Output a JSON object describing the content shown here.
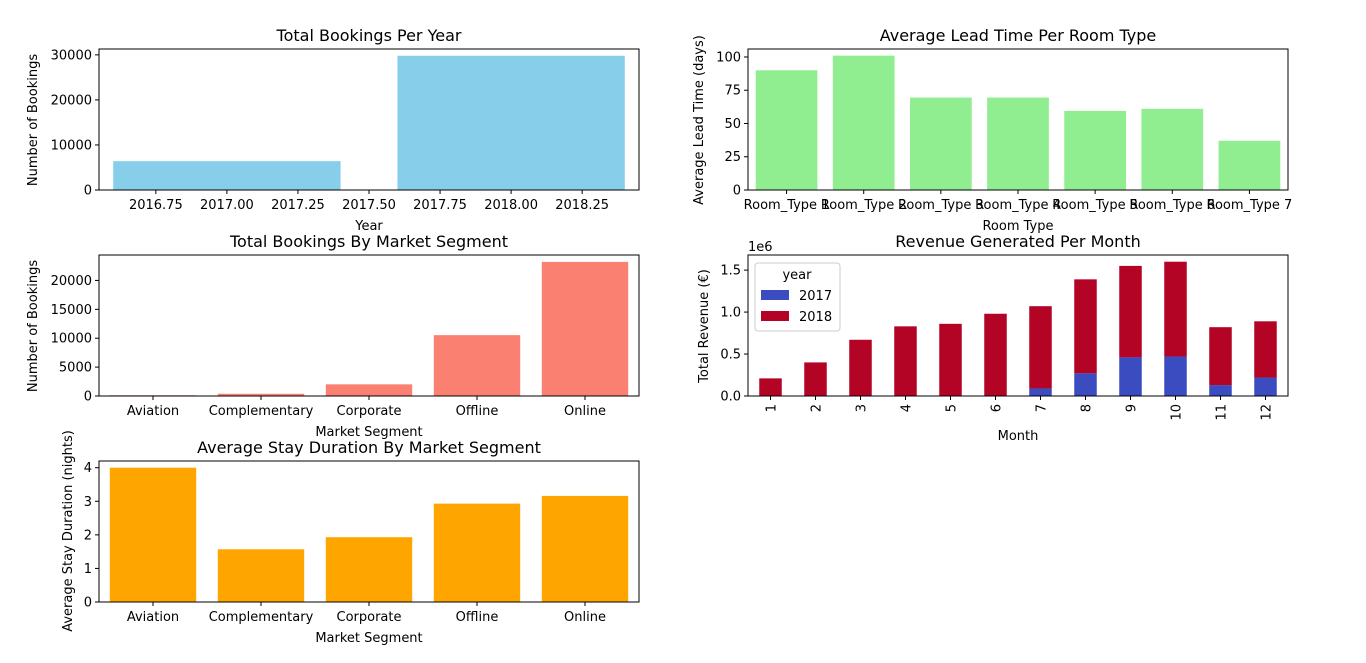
{
  "chart_data": [
    {
      "type": "bar",
      "title": "Total Bookings Per Year",
      "xlabel": "Year",
      "ylabel": "Number of Bookings",
      "x": [
        2017,
        2018
      ],
      "values": [
        6400,
        29800
      ],
      "xlim": [
        2016.55,
        2018.45
      ],
      "ylim": [
        0,
        31300
      ],
      "xticks": [
        2016.75,
        2017.0,
        2017.25,
        2017.5,
        2017.75,
        2018.0,
        2018.25
      ],
      "xtick_labels": [
        "2016.75",
        "2017.00",
        "2017.25",
        "2017.50",
        "2017.75",
        "2018.00",
        "2018.25"
      ],
      "yticks": [
        0,
        10000,
        20000,
        30000
      ],
      "ytick_labels": [
        "0",
        "10000",
        "20000",
        "30000"
      ],
      "color": "#87ceeb",
      "grid": false
    },
    {
      "type": "bar",
      "title": "Average Lead Time Per Room Type",
      "xlabel": "Room Type",
      "ylabel": "Average Lead Time (days)",
      "categories": [
        "Room_Type 1",
        "Room_Type 2",
        "Room_Type 3",
        "Room_Type 4",
        "Room_Type 5",
        "Room_Type 6",
        "Room_Type 7"
      ],
      "values": [
        90,
        101,
        69.5,
        69.5,
        59.5,
        61,
        37
      ],
      "ylim": [
        0,
        106
      ],
      "yticks": [
        0,
        25,
        50,
        75,
        100
      ],
      "ytick_labels": [
        "0",
        "25",
        "50",
        "75",
        "100"
      ],
      "color": "#90ee90",
      "grid": false
    },
    {
      "type": "bar",
      "title": "Total Bookings By Market Segment",
      "xlabel": "Market Segment",
      "ylabel": "Number of Bookings",
      "categories": [
        "Aviation",
        "Complementary",
        "Corporate",
        "Offline",
        "Online"
      ],
      "values": [
        125,
        390,
        2020,
        10530,
        23210
      ],
      "ylim": [
        0,
        24400
      ],
      "yticks": [
        0,
        5000,
        10000,
        15000,
        20000
      ],
      "ytick_labels": [
        "0",
        "5000",
        "10000",
        "15000",
        "20000"
      ],
      "color": "#fa8072",
      "grid": false
    },
    {
      "type": "bar",
      "title": "Revenue Generated Per Month",
      "xlabel": "Month",
      "ylabel": "Total Revenue (€)",
      "stacked": true,
      "categories": [
        "1",
        "2",
        "3",
        "4",
        "5",
        "6",
        "7",
        "8",
        "9",
        "10",
        "11",
        "12"
      ],
      "series": [
        {
          "name": "2017",
          "color": "#3b4cc0",
          "values": [
            0,
            0,
            0,
            0,
            0,
            0,
            0.09,
            0.27,
            0.46,
            0.47,
            0.13,
            0.22
          ]
        },
        {
          "name": "2018",
          "color": "#b40426",
          "values": [
            0.21,
            0.4,
            0.67,
            0.83,
            0.86,
            0.98,
            0.98,
            1.12,
            1.09,
            1.13,
            0.69,
            0.67
          ]
        }
      ],
      "value_scale_label": "1e6",
      "ylim": [
        0,
        1.68
      ],
      "yticks": [
        0,
        0.5,
        1.0,
        1.5
      ],
      "ytick_labels": [
        "0.0",
        "0.5",
        "1.0",
        "1.5"
      ],
      "legend_title": "year",
      "legend_position": "upper-left",
      "grid": false
    },
    {
      "type": "bar",
      "title": "Average Stay Duration By Market Segment",
      "xlabel": "Market Segment",
      "ylabel": "Average Stay Duration (nights)",
      "categories": [
        "Aviation",
        "Complementary",
        "Corporate",
        "Offline",
        "Online"
      ],
      "values": [
        4.0,
        1.57,
        1.93,
        2.93,
        3.16
      ],
      "ylim": [
        0,
        4.2
      ],
      "yticks": [
        0,
        1,
        2,
        3,
        4
      ],
      "ytick_labels": [
        "0",
        "1",
        "2",
        "3",
        "4"
      ],
      "color": "#ffa500",
      "grid": false
    }
  ]
}
